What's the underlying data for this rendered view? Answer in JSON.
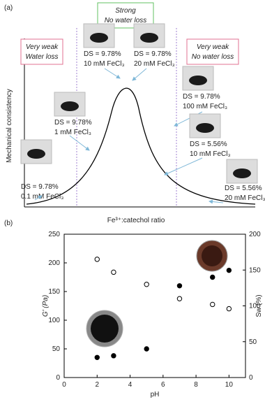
{
  "panel_a": {
    "label": "(a)",
    "y_label": "Mechanical consistency",
    "x_label": "Fe³⁺:catechol ratio",
    "regions": [
      {
        "lines": [
          "Very weak",
          "Water loss"
        ]
      },
      {
        "lines": [
          "Strong",
          "No water loss"
        ]
      },
      {
        "lines": [
          "Very weak",
          "No water loss"
        ]
      }
    ],
    "samples": [
      {
        "lines": [
          "DS = 9.78%",
          "0.1 mM FeCl₃"
        ]
      },
      {
        "lines": [
          "DS = 9.78%",
          "1 mM FeCl₃"
        ]
      },
      {
        "lines": [
          "DS = 9.78%",
          "10 mM FeCl₃"
        ]
      },
      {
        "lines": [
          "DS = 9.78%",
          "20 mM FeCl₃"
        ]
      },
      {
        "lines": [
          "DS = 9.78%",
          "100 mM FeCl₃"
        ]
      },
      {
        "lines": [
          "DS = 5.56%",
          "10 mM FeCl₃"
        ]
      },
      {
        "lines": [
          "DS = 5.56%",
          "20 mM FeCl₃"
        ]
      }
    ]
  },
  "chart_data": {
    "type": "scatter",
    "panel_label": "(b)",
    "x_label": "pH",
    "y_label": "G' (Pa)",
    "y2_label": "Sw (%)",
    "x": [
      2,
      3,
      5,
      7,
      9,
      10
    ],
    "xlim": [
      0,
      11
    ],
    "xticks": [
      0,
      2,
      4,
      6,
      8,
      10
    ],
    "ylim": [
      0,
      250
    ],
    "yticks": [
      0,
      50,
      100,
      150,
      200,
      250
    ],
    "y2lim": [
      0,
      200
    ],
    "y2ticks": [
      0,
      50,
      100,
      150,
      200
    ],
    "series": [
      {
        "color": "#000000",
        "values": [
          35,
          38,
          50,
          160,
          175,
          187
        ]
      },
      {
        "axis": "y2",
        "color": "#ffffff",
        "values": [
          165,
          147,
          130,
          110,
          102,
          96
        ]
      }
    ]
  }
}
